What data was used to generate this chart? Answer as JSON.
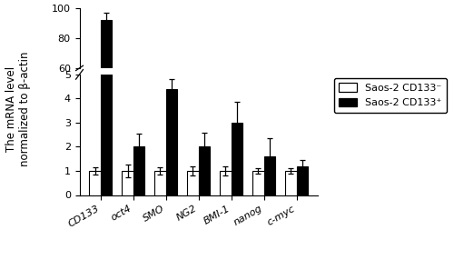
{
  "categories": [
    "CD133",
    "oct4",
    "SMO",
    "NG2",
    "BMI-1",
    "nanog",
    "c-myc"
  ],
  "cd133neg_values": [
    1.0,
    1.0,
    1.0,
    1.0,
    1.0,
    1.0,
    1.0
  ],
  "cd133pos_values": [
    92.0,
    2.0,
    4.4,
    2.0,
    3.0,
    1.6,
    1.2
  ],
  "cd133neg_errors": [
    0.15,
    0.25,
    0.15,
    0.2,
    0.2,
    0.1,
    0.1
  ],
  "cd133pos_errors": [
    4.5,
    0.55,
    0.4,
    0.6,
    0.85,
    0.75,
    0.25
  ],
  "bar_width": 0.35,
  "ylabel": "The mRNA level\nnormalized to β-actin",
  "legend_labels": [
    "Saos-2 CD133⁻",
    "Saos-2 CD133⁺"
  ],
  "bar_color_neg": "#ffffff",
  "bar_color_pos": "#000000",
  "bar_edgecolor": "#000000",
  "ylim_lower": [
    0,
    5
  ],
  "ylim_upper": [
    60,
    100
  ],
  "yticks_lower": [
    0,
    1,
    2,
    3,
    4,
    5
  ],
  "yticks_upper": [
    60,
    80,
    100
  ],
  "figsize": [
    5.0,
    2.86
  ],
  "dpi": 100
}
